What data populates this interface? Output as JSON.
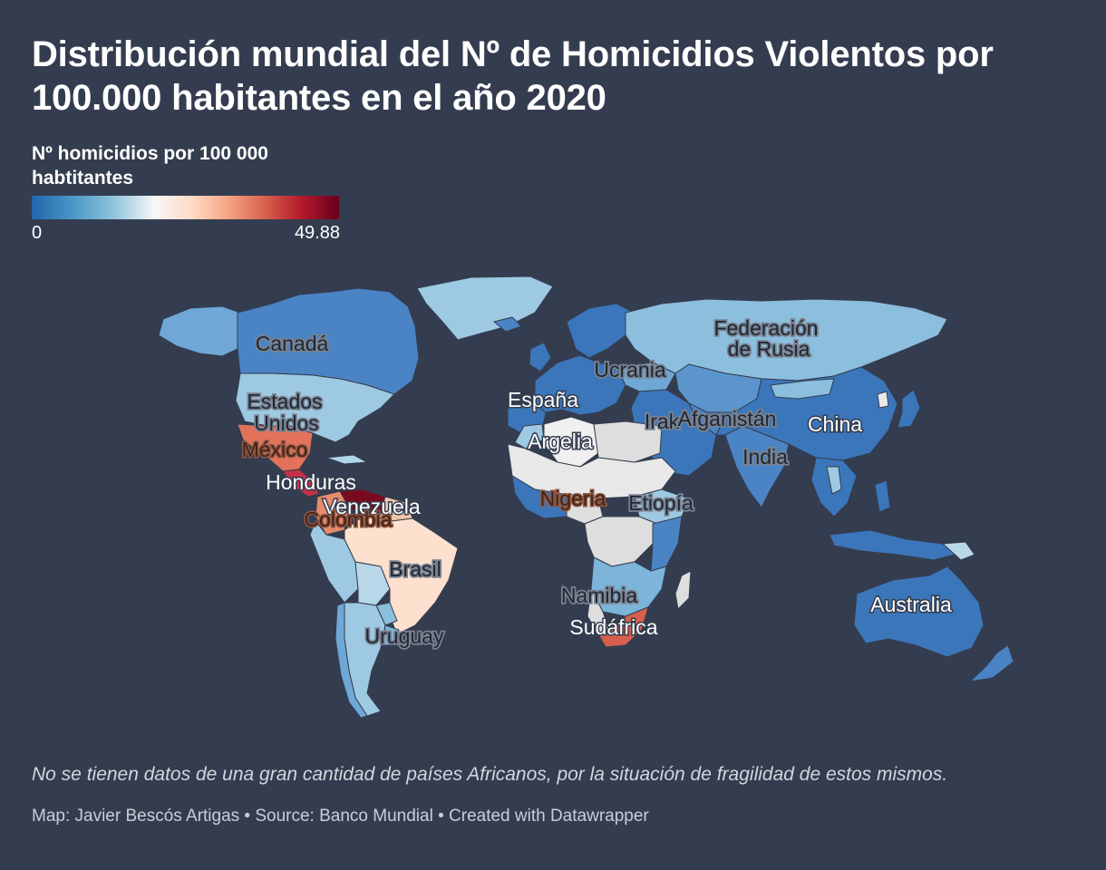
{
  "title": "Distribución mundial del Nº de Homicidios Violentos por 100.000 habitantes en el año 2020",
  "legend": {
    "title": "Nº homicidios por 100 000 habtitantes",
    "min_label": "0",
    "max_label": "49.88",
    "min": 0,
    "max": 49.88,
    "scale_colors": [
      "#2166ac",
      "#4393c3",
      "#92c5de",
      "#f7f7f7",
      "#fddbc7",
      "#f4a582",
      "#d6604d",
      "#b2182b",
      "#67001f"
    ]
  },
  "map": {
    "no_data_color": "#dddddd",
    "labels": {
      "canada": "Canadá",
      "usa_1": "Estados",
      "usa_2": "Unidos",
      "mexico": "México",
      "honduras": "Honduras",
      "venezuela": "Venezuela",
      "colombia": "Colombia",
      "brasil": "Brasil",
      "uruguay": "Uruguay",
      "espana": "España",
      "argelia": "Argelia",
      "nigeria": "Nigeria",
      "etiopia": "Etiopía",
      "namibia": "Namibia",
      "sudafrica": "Sudáfrica",
      "ucrania": "Ucrania",
      "rusia_1": "Federación",
      "rusia_2": "de Rusia",
      "irak": "Irak",
      "afganistan": "Afganistán",
      "china": "China",
      "india": "India",
      "australia": "Australia"
    }
  },
  "note": "No se tienen datos de una gran cantidad de países Africanos, por la situación de fragilidad de estos mismos.",
  "credits": "Map: Javier Bescós Artigas • Source: Banco Mundial • Created with Datawrapper"
}
